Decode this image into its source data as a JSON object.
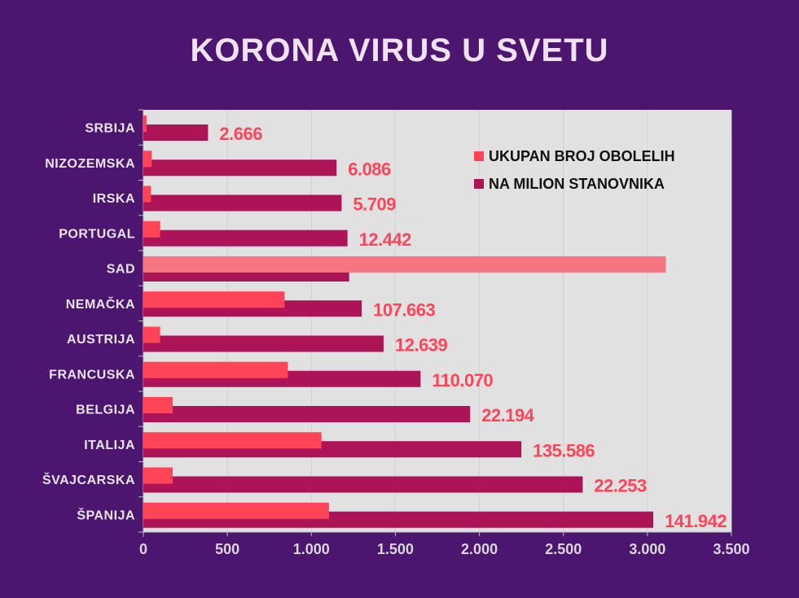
{
  "title": "KORONA  VIRUS U SVETU",
  "colors": {
    "background": "#4b1570",
    "plot_background": "#e1e1e1",
    "series_total": "#ff4458",
    "series_total_highlight": "#f57582",
    "series_per_million": "#ad1457",
    "label_color": "#ff4458",
    "axis_text": "#d8d8d8",
    "category_text": "#e6e6e6"
  },
  "chart_data": {
    "type": "bar",
    "orientation": "horizontal",
    "categories": [
      "SRBIJA",
      "NIZOZEMSKA",
      "IRSKA",
      "PORTUGAL",
      "SAD",
      "NEMAČKA",
      "AUSTRIJA",
      "FRANCUSKA",
      "BELGIJA",
      "ITALIJA",
      "ŠVAJCARSKA",
      "ŠPANIJA"
    ],
    "series": [
      {
        "name": "UKUPAN BROJ OBOLELIH",
        "values": [
          20,
          50,
          45,
          100,
          3110,
          840,
          100,
          860,
          175,
          1060,
          175,
          1105
        ]
      },
      {
        "name": "NA MILION STANOVNIKA",
        "values": [
          385,
          1150,
          1180,
          1215,
          1225,
          1300,
          1430,
          1650,
          1945,
          2250,
          2615,
          3035
        ]
      }
    ],
    "data_labels": [
      "2.666",
      "6.086",
      "5.709",
      "12.442",
      "",
      "107.663",
      "12.639",
      "110.070",
      "22.194",
      "135.586",
      "22.253",
      "141.942"
    ],
    "xlim": [
      0,
      3500
    ],
    "xticks": [
      0,
      500,
      1000,
      1500,
      2000,
      2500,
      3000,
      3500
    ],
    "xtick_labels": [
      "0",
      "500",
      "1.000",
      "1.500",
      "2.000",
      "2.500",
      "3.000",
      "3.500"
    ],
    "grid": "vertical",
    "legend_position": "top-right",
    "title": "KORONA  VIRUS U SVETU",
    "xlabel": "",
    "ylabel": ""
  }
}
